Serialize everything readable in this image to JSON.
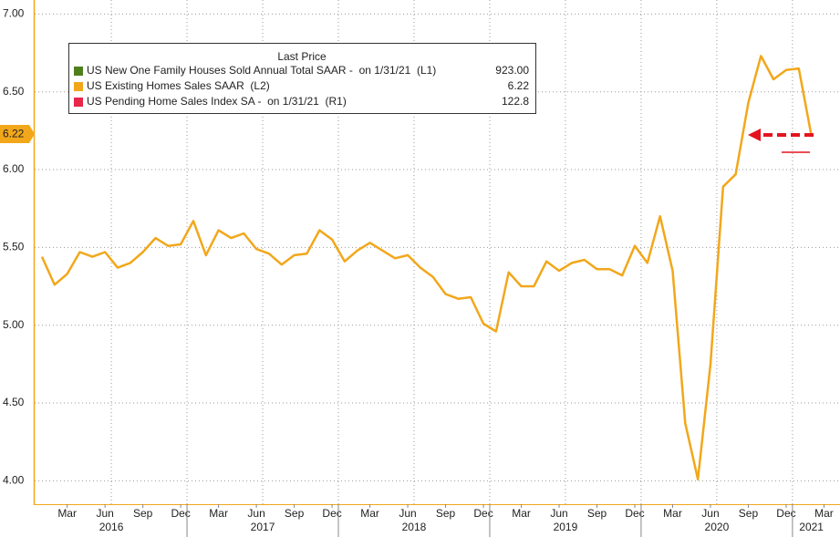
{
  "chart_data": {
    "type": "line",
    "legend_title": "Last Price",
    "categories": [
      null,
      null,
      "Mar",
      null,
      null,
      "Jun",
      null,
      null,
      "Sep",
      null,
      null,
      "Dec",
      null,
      null,
      "Mar",
      null,
      null,
      "Jun",
      null,
      null,
      "Sep",
      null,
      null,
      "Dec",
      null,
      null,
      "Mar",
      null,
      null,
      "Jun",
      null,
      null,
      "Sep",
      null,
      null,
      "Dec",
      null,
      null,
      "Mar",
      null,
      null,
      "Jun",
      null,
      null,
      "Sep",
      null,
      null,
      "Dec",
      null,
      null,
      "Mar",
      null,
      null,
      "Jun",
      null,
      null,
      "Sep",
      null,
      null,
      "Dec",
      null,
      null,
      "Mar"
    ],
    "x_groups": [
      "2016",
      "2017",
      "2018",
      "2019",
      "2020",
      "2021"
    ],
    "series": [
      {
        "name": "US New One Family Houses Sold Annual Total SAAR -  on 1/31/21  (L1)",
        "color": "#4f7f1d",
        "last_value": 923,
        "last_value_label": "923.00"
      },
      {
        "name": "US Existing Homes Sales SAAR  (L2)",
        "color": "#f2a71b",
        "last_value": 6.22,
        "last_value_label": "6.22",
        "values": [
          5.44,
          5.26,
          5.33,
          5.47,
          5.44,
          5.47,
          5.37,
          5.4,
          5.47,
          5.56,
          5.51,
          5.52,
          5.67,
          5.45,
          5.61,
          5.56,
          5.59,
          5.49,
          5.46,
          5.39,
          5.45,
          5.46,
          5.61,
          5.55,
          5.41,
          5.48,
          5.53,
          5.48,
          5.43,
          5.45,
          5.37,
          5.31,
          5.2,
          5.17,
          5.18,
          5.01,
          4.96,
          5.34,
          5.25,
          5.25,
          5.41,
          5.35,
          5.4,
          5.42,
          5.36,
          5.36,
          5.32,
          5.51,
          5.4,
          5.7,
          5.35,
          4.37,
          4.01,
          4.75,
          5.89,
          5.97,
          6.43,
          6.73,
          6.58,
          6.64,
          6.65,
          6.22,
          null
        ]
      },
      {
        "name": "US Pending Home Sales Index SA -  on 1/31/21  (R1)",
        "color": "#e8264a",
        "last_value": 122.8,
        "last_value_label": "122.8"
      }
    ],
    "ylim": [
      3.85,
      7.09
    ],
    "yticks": [
      {
        "value": 4,
        "label": "4.00"
      },
      {
        "value": 4.5,
        "label": "4.50"
      },
      {
        "value": 5,
        "label": "5.00"
      },
      {
        "value": 5.5,
        "label": "5.50"
      },
      {
        "value": 6,
        "label": "6.00"
      },
      {
        "value": 6.5,
        "label": "6.50"
      },
      {
        "value": 7,
        "label": "7.00"
      }
    ],
    "grid": true
  }
}
